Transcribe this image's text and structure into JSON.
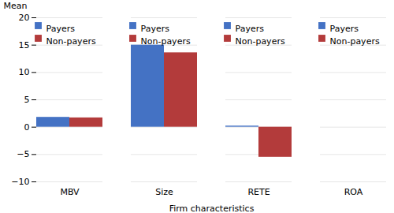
{
  "chart_data": {
    "type": "bar",
    "categories": [
      "MBV",
      "Size",
      "RETE",
      "ROA"
    ],
    "series": [
      {
        "name": "Payers",
        "color": "#4472C4",
        "values": [
          1.8,
          15.0,
          0.2,
          0.0
        ]
      },
      {
        "name": "Non-payers",
        "color": "#B33B3B",
        "values": [
          1.7,
          13.6,
          -5.5,
          0.0
        ]
      }
    ],
    "xlabel": "Firm characteristics",
    "ylabel": "Mean",
    "ylim": [
      -10,
      20
    ],
    "yticks": [
      -10,
      -5,
      0,
      5,
      10,
      15,
      20
    ],
    "grid": true,
    "legend": "upper right"
  }
}
